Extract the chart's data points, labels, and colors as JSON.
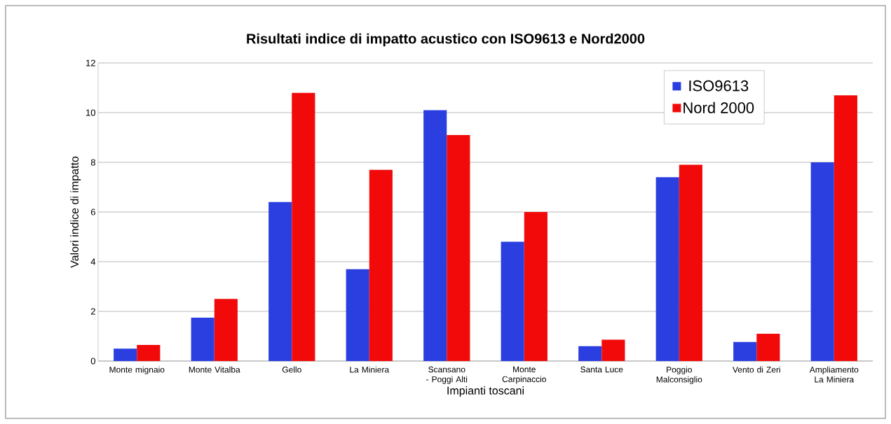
{
  "chart_data": {
    "type": "bar",
    "title": "Risultati indice di impatto acustico con ISO9613  e Nord2000",
    "xlabel": "Impianti toscani",
    "ylabel": "Valori indice di impatto",
    "categories": [
      "Monte mignaio",
      "Monte Vitalba",
      "Gello",
      "La Miniera",
      "Scansano - Poggi Alti",
      "Monte Carpinaccio",
      "Santa Luce",
      "Poggio Malconsiglio",
      "Vento di Zeri",
      "Ampliamento La Miniera"
    ],
    "series": [
      {
        "name": "ISO9613",
        "color": "#2b3fe0",
        "values": [
          0.5,
          1.75,
          6.4,
          3.7,
          10.1,
          4.8,
          0.6,
          7.4,
          0.77,
          8.0
        ]
      },
      {
        "name": "Nord 2000",
        "color": "#f20a0a",
        "values": [
          0.65,
          2.5,
          10.8,
          7.7,
          9.1,
          6.0,
          0.86,
          7.9,
          1.1,
          10.7
        ]
      }
    ],
    "ylim": [
      0,
      12
    ],
    "yticks": [
      0,
      2,
      4,
      6,
      8,
      10,
      12
    ],
    "grid": "y",
    "legend": "top right"
  }
}
